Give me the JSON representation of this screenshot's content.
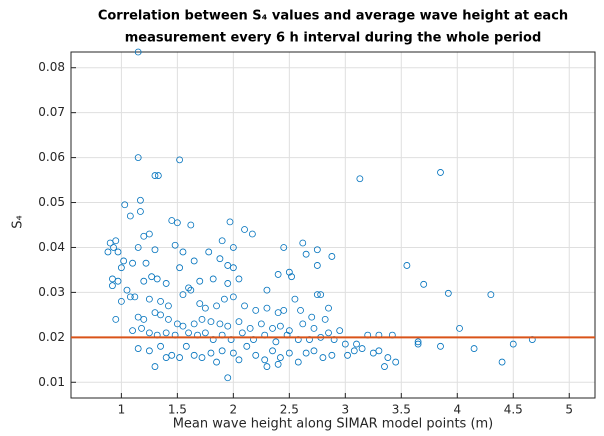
{
  "chart_data": {
    "type": "scatter",
    "title": [
      "Correlation between S₄ values and average wave height at each",
      "measurement every 6 h interval during the whole period"
    ],
    "xlabel": "Mean wave height along SIMAR model points (m)",
    "ylabel": "S₄",
    "xlim": [
      0.55,
      5.23
    ],
    "ylim": [
      0.0065,
      0.0835
    ],
    "xticks": [
      1,
      1.5,
      2,
      2.5,
      3,
      3.5,
      4,
      4.5,
      5
    ],
    "yticks": [
      0.01,
      0.02,
      0.03,
      0.04,
      0.05,
      0.06,
      0.07,
      0.08
    ],
    "grid": true,
    "hline": {
      "value": 0.02,
      "color": "#d95319"
    },
    "series": [
      {
        "color": "#0072bd",
        "x": [
          1.15,
          1.15,
          1.52,
          1.3,
          1.33,
          3.13,
          3.85,
          1.17,
          1.03,
          1.17,
          1.08,
          1.45,
          1.5,
          1.25,
          1.2,
          1.97,
          2.1,
          2.17,
          1.62,
          0.9,
          0.95,
          0.93,
          0.88,
          0.97,
          1.15,
          1.3,
          1.48,
          1.55,
          1.78,
          1.9,
          2.0,
          2.45,
          2.62,
          2.65,
          2.75,
          2.88,
          1.02,
          1.1,
          1.22,
          1.52,
          1.65,
          1.88,
          1.95,
          2.0,
          2.4,
          2.5,
          2.52,
          2.75,
          3.55,
          3.7,
          3.92,
          4.3,
          1.0,
          1.2,
          1.27,
          1.32,
          1.4,
          1.6,
          1.7,
          1.82,
          1.95,
          2.05,
          2.3,
          2.55,
          2.75,
          2.78,
          2.85,
          0.92,
          0.92,
          0.97,
          1.05,
          1.12,
          1.08,
          1.0,
          1.25,
          1.35,
          1.42,
          1.55,
          1.62,
          1.7,
          1.75,
          1.85,
          1.92,
          2.0,
          2.1,
          2.2,
          2.3,
          2.4,
          2.45,
          2.6,
          2.7,
          2.82,
          0.95,
          1.15,
          1.2,
          1.3,
          1.35,
          1.42,
          1.5,
          1.55,
          1.65,
          1.72,
          1.8,
          1.88,
          1.95,
          2.05,
          2.15,
          2.25,
          2.35,
          2.42,
          2.5,
          2.62,
          2.72,
          2.85,
          2.95,
          3.2,
          3.3,
          3.42,
          4.02,
          1.1,
          1.18,
          1.25,
          1.32,
          1.4,
          1.48,
          1.6,
          1.68,
          1.75,
          1.82,
          1.9,
          1.98,
          2.08,
          2.18,
          2.28,
          2.38,
          2.48,
          2.58,
          2.68,
          2.78,
          2.9,
          3.0,
          3.1,
          3.65,
          3.65,
          3.85,
          4.15,
          4.5,
          4.67,
          4.4,
          1.15,
          1.25,
          1.35,
          1.45,
          1.52,
          1.58,
          1.65,
          1.72,
          1.8,
          1.85,
          1.9,
          1.95,
          2.0,
          2.05,
          2.12,
          2.2,
          2.28,
          2.35,
          2.42,
          2.5,
          2.58,
          2.65,
          2.72,
          2.8,
          2.88,
          3.02,
          3.08,
          3.15,
          3.25,
          3.3,
          3.35,
          3.38,
          3.45,
          1.3,
          1.4,
          2.3,
          2.4
        ],
        "values": [
          0.0835,
          0.06,
          0.0595,
          0.056,
          0.056,
          0.0553,
          0.0567,
          0.0505,
          0.0495,
          0.048,
          0.047,
          0.046,
          0.0455,
          0.043,
          0.0425,
          0.0457,
          0.044,
          0.043,
          0.045,
          0.041,
          0.0415,
          0.04,
          0.039,
          0.039,
          0.04,
          0.0395,
          0.0405,
          0.039,
          0.039,
          0.0415,
          0.04,
          0.04,
          0.041,
          0.0385,
          0.0395,
          0.038,
          0.037,
          0.0365,
          0.0365,
          0.0355,
          0.037,
          0.0375,
          0.036,
          0.0355,
          0.034,
          0.0345,
          0.0335,
          0.036,
          0.036,
          0.0318,
          0.0298,
          0.0295,
          0.0355,
          0.0325,
          0.0335,
          0.033,
          0.032,
          0.031,
          0.0325,
          0.033,
          0.032,
          0.033,
          0.0305,
          0.0285,
          0.0295,
          0.0295,
          0.0265,
          0.033,
          0.0315,
          0.0325,
          0.0305,
          0.029,
          0.029,
          0.028,
          0.0285,
          0.028,
          0.027,
          0.0295,
          0.0305,
          0.0275,
          0.0265,
          0.027,
          0.0285,
          0.029,
          0.027,
          0.026,
          0.0265,
          0.0255,
          0.026,
          0.026,
          0.0245,
          0.024,
          0.024,
          0.0245,
          0.024,
          0.0255,
          0.025,
          0.024,
          0.023,
          0.0225,
          0.023,
          0.024,
          0.0235,
          0.023,
          0.0225,
          0.0235,
          0.022,
          0.023,
          0.022,
          0.0225,
          0.0215,
          0.023,
          0.022,
          0.021,
          0.0215,
          0.0205,
          0.0205,
          0.0205,
          0.022,
          0.0215,
          0.022,
          0.021,
          0.0205,
          0.021,
          0.0205,
          0.021,
          0.0205,
          0.021,
          0.0195,
          0.0205,
          0.0195,
          0.021,
          0.0195,
          0.0205,
          0.019,
          0.0205,
          0.0195,
          0.0195,
          0.02,
          0.0195,
          0.0185,
          0.0185,
          0.019,
          0.0185,
          0.018,
          0.0175,
          0.0185,
          0.0195,
          0.0145,
          0.0175,
          0.017,
          0.018,
          0.016,
          0.0155,
          0.018,
          0.016,
          0.0155,
          0.0165,
          0.0145,
          0.017,
          0.011,
          0.0165,
          0.015,
          0.018,
          0.016,
          0.015,
          0.017,
          0.0155,
          0.0165,
          0.0145,
          0.0165,
          0.017,
          0.0155,
          0.016,
          0.016,
          0.017,
          0.0175,
          0.0165,
          0.017,
          0.0135,
          0.0155,
          0.0145,
          0.0135,
          0.0155,
          0.0135,
          0.014
        ]
      }
    ]
  }
}
